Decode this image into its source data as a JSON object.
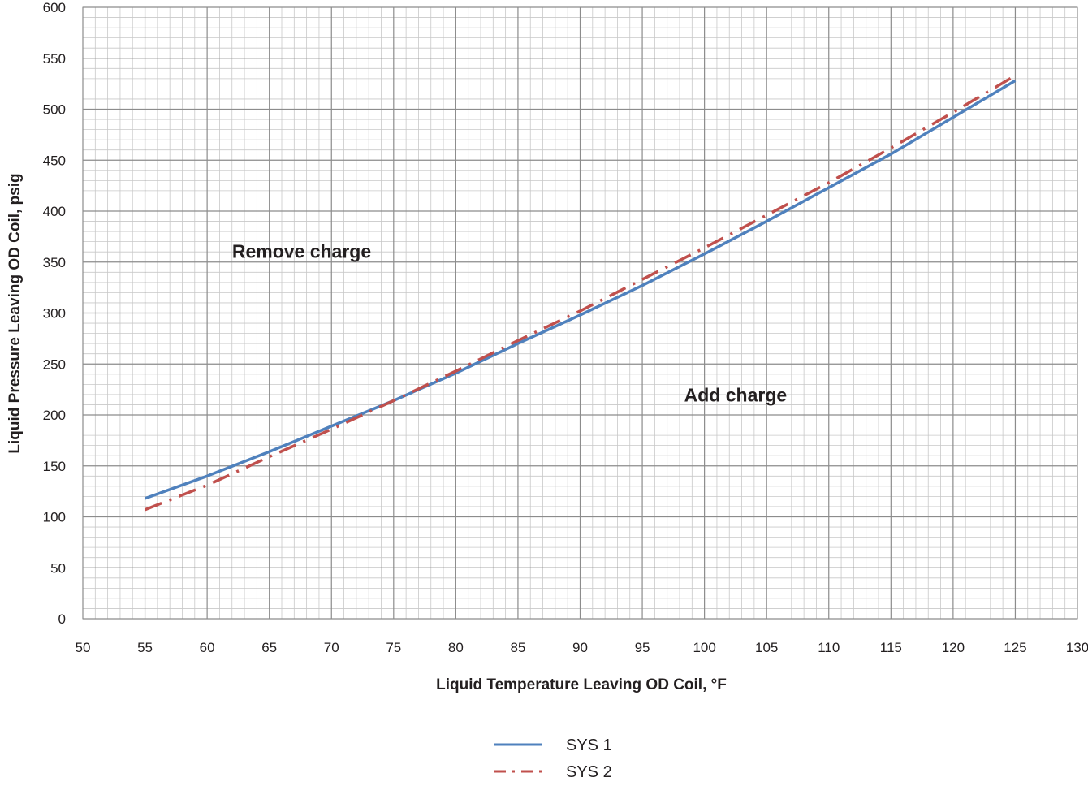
{
  "chart_data": {
    "type": "line",
    "title": "",
    "xlabel": "Liquid Temperature Leaving OD Coil, °F",
    "ylabel": "Liquid Pressure Leaving OD Coil,  psig",
    "xlim": [
      50,
      130
    ],
    "ylim": [
      0,
      600
    ],
    "x_major_step": 5,
    "y_major_step": 50,
    "x_minor_step": 1,
    "y_minor_step": 10,
    "grid": true,
    "legend_position": "bottom-center",
    "x_ticks": [
      "50",
      "55",
      "60",
      "65",
      "70",
      "75",
      "80",
      "85",
      "90",
      "95",
      "100",
      "105",
      "110",
      "115",
      "120",
      "125",
      "130"
    ],
    "y_ticks": [
      "0",
      "50",
      "100",
      "150",
      "200",
      "250",
      "300",
      "350",
      "400",
      "450",
      "500",
      "550",
      "600"
    ],
    "series": [
      {
        "name": "SYS 1",
        "color": "#4f81bd",
        "style": "solid",
        "x": [
          55,
          60,
          65,
          70,
          75,
          80,
          85,
          90,
          95,
          100,
          105,
          110,
          115,
          120,
          125
        ],
        "y": [
          118,
          140,
          164,
          189,
          214,
          241,
          270,
          298,
          327,
          358,
          390,
          423,
          456,
          492,
          528
        ]
      },
      {
        "name": "SYS 2",
        "color": "#c0504d",
        "style": "dash-dot",
        "x": [
          55,
          60,
          65,
          70,
          75,
          80,
          85,
          90,
          95,
          100,
          105,
          110,
          115,
          120,
          125
        ],
        "y": [
          107,
          131,
          159,
          186,
          214,
          243,
          273,
          302,
          333,
          364,
          396,
          428,
          462,
          497,
          533
        ]
      }
    ],
    "annotations": [
      {
        "text": "Remove charge",
        "x": 67.6,
        "y": 354
      },
      {
        "text": "Add charge",
        "x": 102.5,
        "y": 213
      }
    ]
  }
}
